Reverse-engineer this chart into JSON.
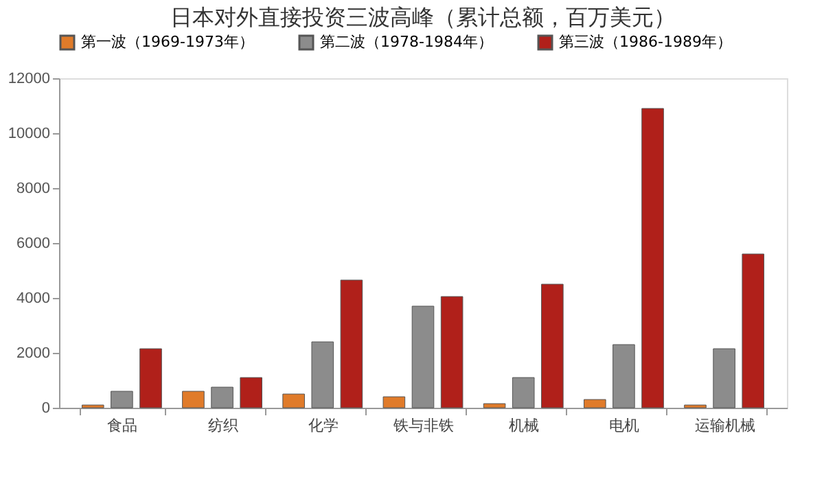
{
  "chart_data": {
    "type": "bar",
    "title": "日本对外直接投资三波高峰（累计总额，百万美元）",
    "categories": [
      "食品",
      "纺织",
      "化学",
      "铁与非铁",
      "机械",
      "电机",
      "运输机械"
    ],
    "series": [
      {
        "name": "第一波（1969-1973年）",
        "color": "#e07b2a",
        "values": [
          100,
          600,
          500,
          400,
          150,
          300,
          100
        ]
      },
      {
        "name": "第二波（1978-1984年）",
        "color": "#8c8c8c",
        "values": [
          600,
          750,
          2400,
          3700,
          1100,
          2300,
          2150
        ]
      },
      {
        "name": "第三波（1986-1989年）",
        "color": "#b0201a",
        "values": [
          2150,
          1100,
          4650,
          4050,
          4500,
          10900,
          5600
        ]
      }
    ],
    "ylim": [
      0,
      12000
    ],
    "yticks": [
      0,
      2000,
      4000,
      6000,
      8000,
      10000,
      12000
    ],
    "grid": false,
    "legend": "top"
  }
}
